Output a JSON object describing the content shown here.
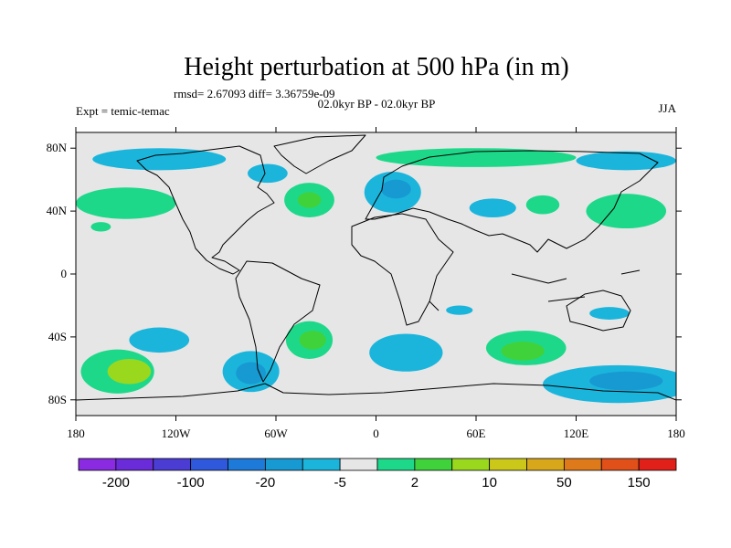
{
  "header": {
    "title": "Height perturbation at 500 hPa (in m)",
    "stats": "rmsd= 2.67093 diff= 3.36759e-09",
    "period": "02.0kyr BP - 02.0kyr BP",
    "experiment": "Expt = temic-temac",
    "season": "JJA"
  },
  "axes": {
    "lat_ticks": [
      {
        "label": "80N",
        "value": 80
      },
      {
        "label": "40N",
        "value": 40
      },
      {
        "label": "0",
        "value": 0
      },
      {
        "label": "40S",
        "value": -40
      },
      {
        "label": "80S",
        "value": -80
      }
    ],
    "lon_ticks": [
      {
        "label": "180",
        "value": -180
      },
      {
        "label": "120W",
        "value": -120
      },
      {
        "label": "60W",
        "value": -60
      },
      {
        "label": "0",
        "value": 0
      },
      {
        "label": "60E",
        "value": 60
      },
      {
        "label": "120E",
        "value": 120
      },
      {
        "label": "180",
        "value": 180
      }
    ],
    "lon_range": [
      -180,
      180
    ],
    "lat_range": [
      -90,
      90
    ]
  },
  "colorbar": {
    "colors": [
      "#8a2be2",
      "#6a2bd8",
      "#4b3cd4",
      "#2f58dc",
      "#1e7ad8",
      "#1799d2",
      "#1bb5dc",
      "#e6e6e6",
      "#1ed88a",
      "#3fd23a",
      "#9ad81e",
      "#ccc81a",
      "#d8a81a",
      "#de7a1a",
      "#e2501a",
      "#e2201a"
    ],
    "labels": [
      {
        "text": "-200",
        "after_box": 1
      },
      {
        "text": "-100",
        "after_box": 3
      },
      {
        "text": "-20",
        "after_box": 5
      },
      {
        "text": "-5",
        "after_box": 7
      },
      {
        "text": "2",
        "after_box": 9
      },
      {
        "text": "10",
        "after_box": 11
      },
      {
        "text": "50",
        "after_box": 13
      },
      {
        "text": "150",
        "after_box": 15
      }
    ]
  },
  "map_colors": {
    "background": "#e6e6e6",
    "neg_light": "#1bb5dc",
    "neg_mid": "#1799d2",
    "pos_light": "#1ed88a",
    "pos_mid": "#3fd23a",
    "pos_strong": "#9ad81e"
  },
  "anomaly_regions": [
    {
      "shape": "ellipse",
      "lon": -155,
      "lat": -62,
      "rlon": 22,
      "rlat": 14,
      "color": "#1ed88a"
    },
    {
      "shape": "ellipse",
      "lon": -148,
      "lat": -62,
      "rlon": 13,
      "rlat": 8,
      "color": "#9ad81e"
    },
    {
      "shape": "ellipse",
      "lon": -75,
      "lat": -62,
      "rlon": 17,
      "rlat": 13,
      "color": "#1bb5dc"
    },
    {
      "shape": "ellipse",
      "lon": -75,
      "lat": -63,
      "rlon": 9,
      "rlat": 7,
      "color": "#1799d2"
    },
    {
      "shape": "ellipse",
      "lon": -40,
      "lat": -42,
      "rlon": 14,
      "rlat": 12,
      "color": "#1ed88a"
    },
    {
      "shape": "ellipse",
      "lon": -38,
      "lat": -42,
      "rlon": 8,
      "rlat": 6,
      "color": "#3fd23a"
    },
    {
      "shape": "ellipse",
      "lon": -130,
      "lat": -42,
      "rlon": 18,
      "rlat": 8,
      "color": "#1bb5dc"
    },
    {
      "shape": "ellipse",
      "lon": 18,
      "lat": -50,
      "rlon": 22,
      "rlat": 12,
      "color": "#1bb5dc"
    },
    {
      "shape": "ellipse",
      "lon": 90,
      "lat": -47,
      "rlon": 24,
      "rlat": 11,
      "color": "#1ed88a"
    },
    {
      "shape": "ellipse",
      "lon": 88,
      "lat": -49,
      "rlon": 13,
      "rlat": 6,
      "color": "#3fd23a"
    },
    {
      "shape": "ellipse",
      "lon": 145,
      "lat": -70,
      "rlon": 45,
      "rlat": 12,
      "color": "#1bb5dc"
    },
    {
      "shape": "ellipse",
      "lon": 150,
      "lat": -68,
      "rlon": 22,
      "rlat": 6,
      "color": "#1799d2"
    },
    {
      "shape": "ellipse",
      "lon": -40,
      "lat": 47,
      "rlon": 15,
      "rlat": 11,
      "color": "#1ed88a"
    },
    {
      "shape": "ellipse",
      "lon": -40,
      "lat": 47,
      "rlon": 7,
      "rlat": 5,
      "color": "#3fd23a"
    },
    {
      "shape": "ellipse",
      "lon": 10,
      "lat": 52,
      "rlon": 17,
      "rlat": 13,
      "color": "#1bb5dc"
    },
    {
      "shape": "ellipse",
      "lon": 12,
      "lat": 54,
      "rlon": 9,
      "rlat": 6,
      "color": "#1799d2"
    },
    {
      "shape": "ellipse",
      "lon": 70,
      "lat": 42,
      "rlon": 14,
      "rlat": 6,
      "color": "#1bb5dc"
    },
    {
      "shape": "ellipse",
      "lon": 100,
      "lat": 44,
      "rlon": 10,
      "rlat": 6,
      "color": "#1ed88a"
    },
    {
      "shape": "ellipse",
      "lon": 150,
      "lat": 40,
      "rlon": 24,
      "rlat": 11,
      "color": "#1ed88a"
    },
    {
      "shape": "ellipse",
      "lon": -150,
      "lat": 45,
      "rlon": 30,
      "rlat": 10,
      "color": "#1ed88a"
    },
    {
      "shape": "ellipse",
      "lon": -165,
      "lat": 30,
      "rlon": 6,
      "rlat": 3,
      "color": "#1ed88a"
    },
    {
      "shape": "ellipse",
      "lon": -130,
      "lat": 73,
      "rlon": 40,
      "rlat": 7,
      "color": "#1bb5dc"
    },
    {
      "shape": "ellipse",
      "lon": -65,
      "lat": 64,
      "rlon": 12,
      "rlat": 6,
      "color": "#1bb5dc"
    },
    {
      "shape": "ellipse",
      "lon": 60,
      "lat": 74,
      "rlon": 60,
      "rlat": 6,
      "color": "#1ed88a"
    },
    {
      "shape": "ellipse",
      "lon": 150,
      "lat": 72,
      "rlon": 30,
      "rlat": 6,
      "color": "#1bb5dc"
    },
    {
      "shape": "ellipse",
      "lon": 140,
      "lat": -25,
      "rlon": 12,
      "rlat": 4,
      "color": "#1bb5dc"
    },
    {
      "shape": "ellipse",
      "lon": 50,
      "lat": -23,
      "rlon": 8,
      "rlat": 3,
      "color": "#1bb5dc"
    }
  ]
}
